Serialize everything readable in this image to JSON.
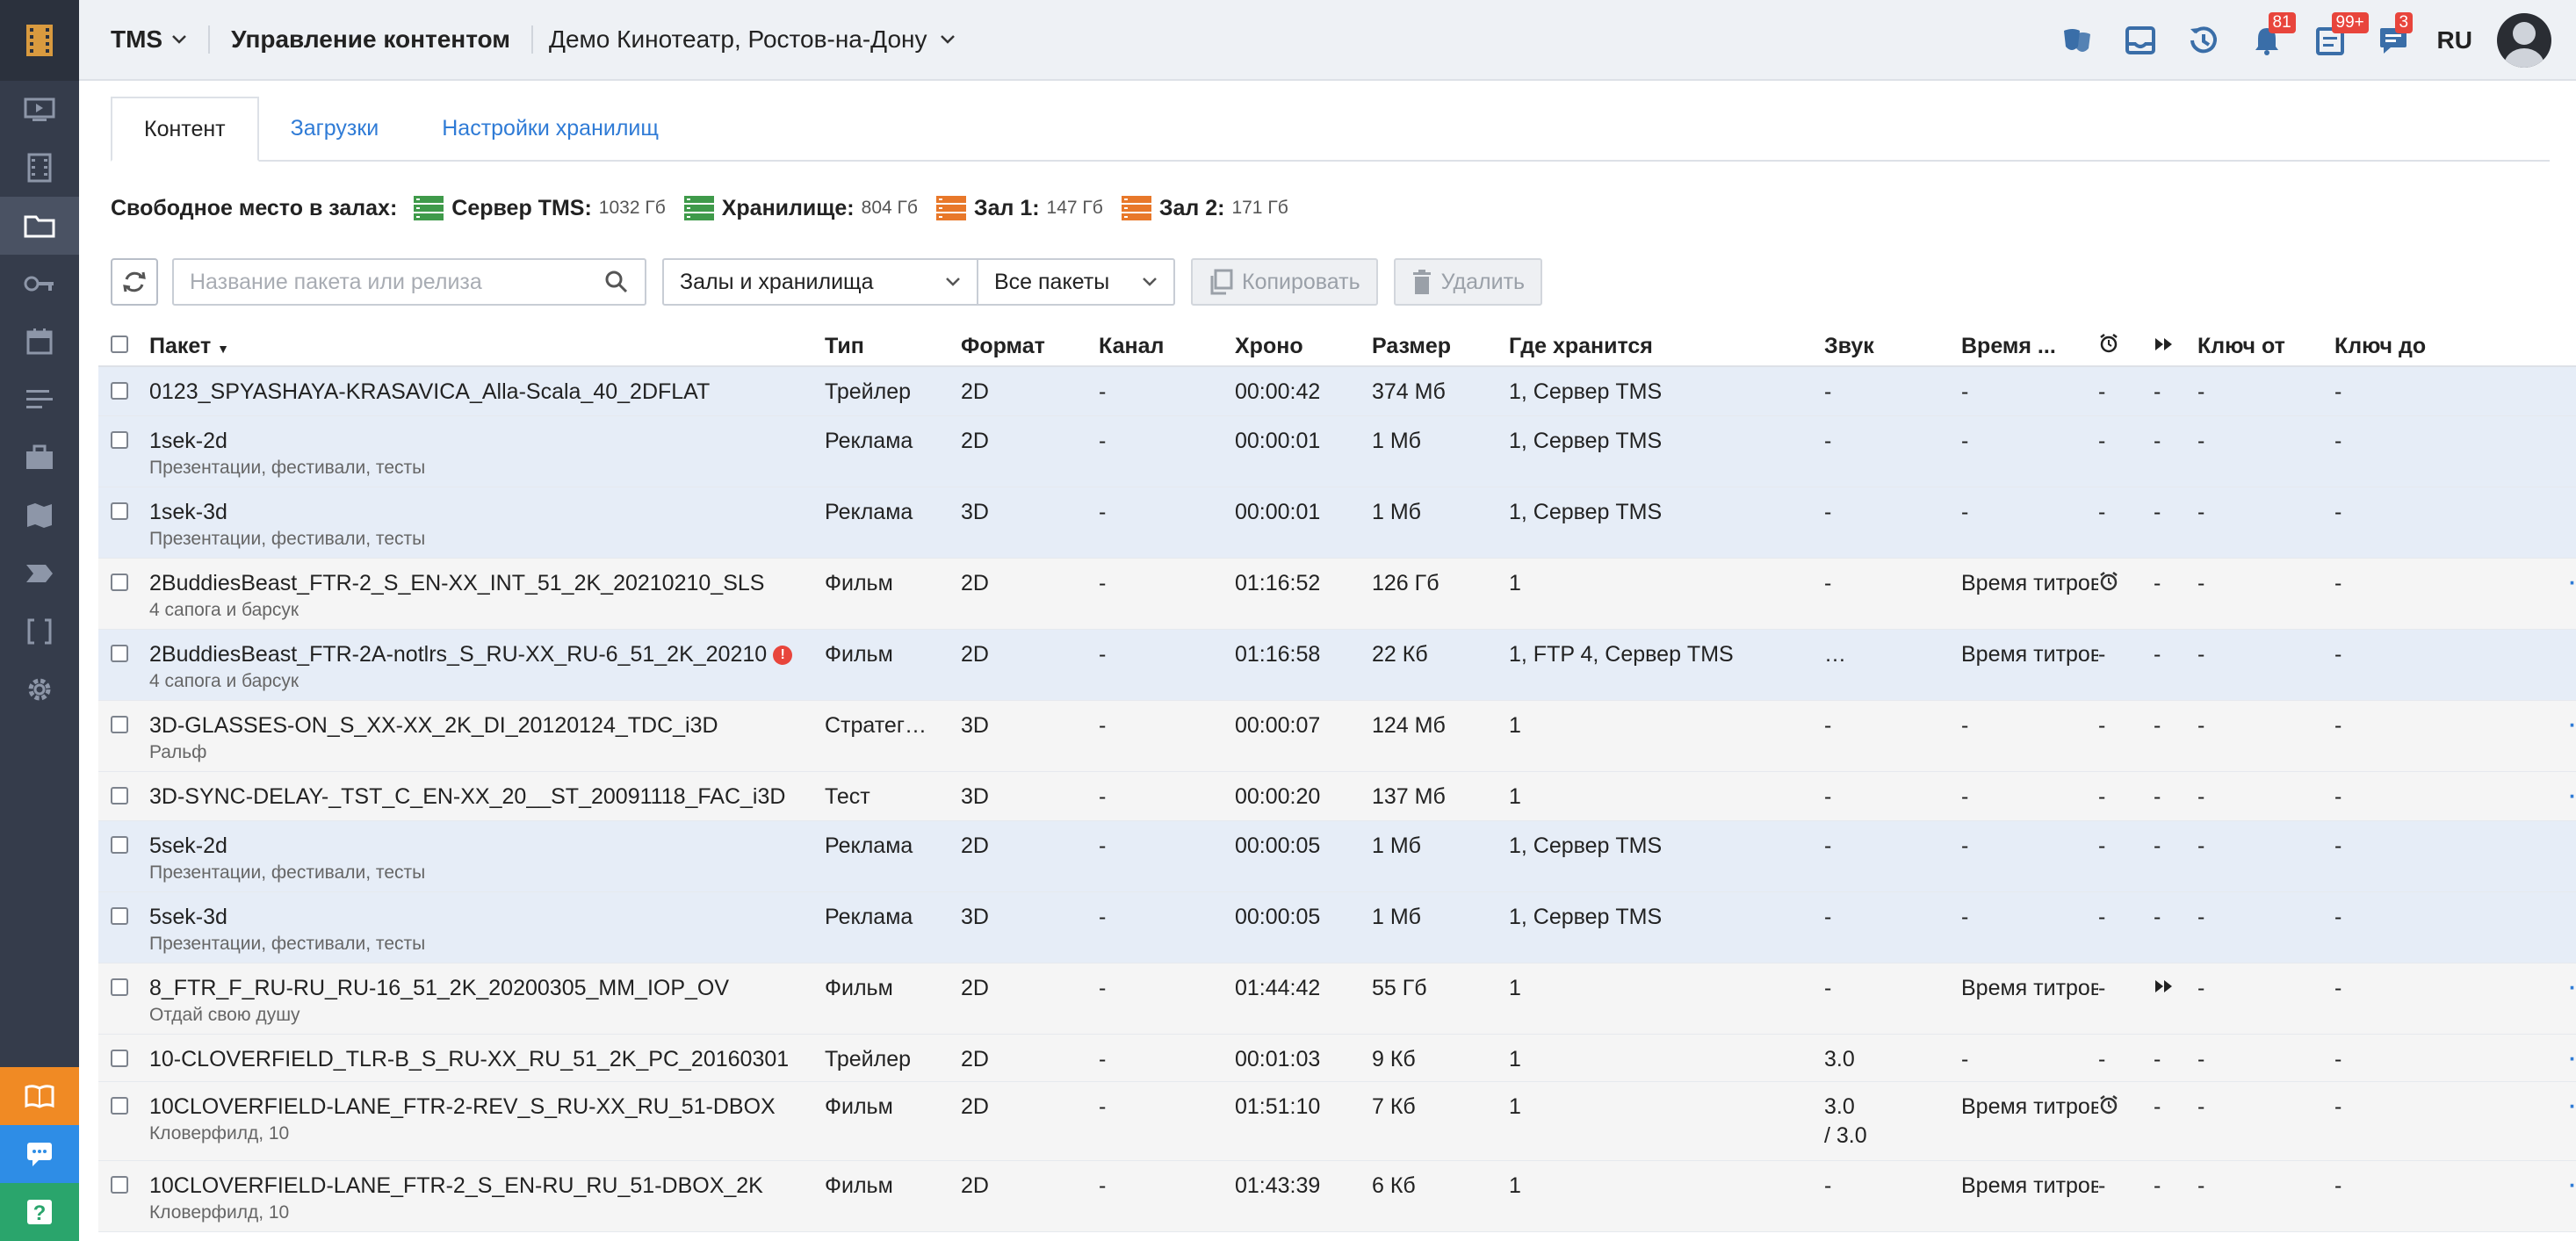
{
  "header": {
    "app": "TMS",
    "title": "Управление контентом",
    "cinema": "Демо Кинотеатр, Ростов-на-Дону",
    "badges": {
      "notifications": "81",
      "tasks": "99+",
      "messages": "3"
    },
    "lang": "RU"
  },
  "tabs": [
    "Контент",
    "Загрузки",
    "Настройки хранилищ"
  ],
  "free_space": {
    "label": "Свободное место в залах:",
    "servers": [
      {
        "name": "Сервер TMS:",
        "size": "1032 Гб",
        "color": "#3f9a4a"
      },
      {
        "name": "Хранилище:",
        "size": "804 Гб",
        "color": "#3f9a4a"
      },
      {
        "name": "Зал 1:",
        "size": "147 Гб",
        "color": "#e8782a"
      },
      {
        "name": "Зал 2:",
        "size": "171 Гб",
        "color": "#e8782a"
      }
    ]
  },
  "toolbar": {
    "search_placeholder": "Название пакета или релиза",
    "filter_halls": "Залы и хранилища",
    "filter_packages": "Все пакеты",
    "copy": "Копировать",
    "delete": "Удалить"
  },
  "columns": [
    "Пакет",
    "Тип",
    "Формат",
    "Канал",
    "Хроно",
    "Размер",
    "Где хранится",
    "Звук",
    "Время ...",
    "Ключ от",
    "Ключ до"
  ],
  "rows": [
    {
      "name": "0123_SPYASHAYA-KRASAVICA_Alla-Scala_40_2DFLAT",
      "sub": "",
      "type": "Трейлер",
      "fmt": "2D",
      "ch": "-",
      "chr": "00:00:42",
      "size": "374 Мб",
      "where": "1, Сервер TMS",
      "snd": "-",
      "time": "-",
      "alarm": "-",
      "ff": "-",
      "kfrom": "-",
      "kto": "-",
      "act": "chevron",
      "bg": "blue",
      "h": 56
    },
    {
      "name": "1sek-2d",
      "sub": "Презентации, фестивали, тесты",
      "type": "Реклама",
      "fmt": "2D",
      "ch": "-",
      "chr": "00:00:01",
      "size": "1 Мб",
      "where": "1, Сервер TMS",
      "snd": "-",
      "time": "-",
      "alarm": "-",
      "ff": "-",
      "kfrom": "-",
      "kto": "-",
      "act": "chevron",
      "bg": "blue",
      "h": 81
    },
    {
      "name": "1sek-3d",
      "sub": "Презентации, фестивали, тесты",
      "type": "Реклама",
      "fmt": "3D",
      "ch": "-",
      "chr": "00:00:01",
      "size": "1 Мб",
      "where": "1, Сервер TMS",
      "snd": "-",
      "time": "-",
      "alarm": "-",
      "ff": "-",
      "kfrom": "-",
      "kto": "-",
      "act": "chevron",
      "bg": "blue",
      "h": 81
    },
    {
      "name": "2BuddiesBeast_FTR-2_S_EN-XX_INT_51_2K_20210210_SLS",
      "sub": "4 сапога и барсук",
      "type": "Фильм",
      "fmt": "2D",
      "ch": "-",
      "chr": "01:16:52",
      "size": "126 Гб",
      "where": "1",
      "snd": "-",
      "time": "Время титров",
      "alarm": "icon",
      "ff": "-",
      "kfrom": "-",
      "kto": "-",
      "act": "dots",
      "bg": "gray",
      "h": 81
    },
    {
      "name": "2BuddiesBeast_FTR-2A-notlrs_S_RU-XX_RU-6_51_2K_20210",
      "sub": "4 сапога и барсук",
      "warn": true,
      "type": "Фильм",
      "fmt": "2D",
      "ch": "-",
      "chr": "01:16:58",
      "size": "22 Кб",
      "where": "1, FTP 4, Сервер TMS",
      "snd": "…",
      "time": "Время титров",
      "alarm": "-",
      "ff": "-",
      "kfrom": "-",
      "kto": "-",
      "act": "chevron",
      "bg": "blue",
      "h": 81
    },
    {
      "name": "3D-GLASSES-ON_S_XX-XX_2K_DI_20120124_TDC_i3D",
      "sub": "Ральф",
      "type": "Стратег…",
      "fmt": "3D",
      "ch": "-",
      "chr": "00:00:07",
      "size": "124 Мб",
      "where": "1",
      "snd": "-",
      "time": "-",
      "alarm": "-",
      "ff": "-",
      "kfrom": "-",
      "kto": "-",
      "act": "dots",
      "bg": "gray",
      "h": 81
    },
    {
      "name": "3D-SYNC-DELAY-_TST_C_EN-XX_20__ST_20091118_FAC_i3D",
      "sub": "",
      "type": "Тест",
      "fmt": "3D",
      "ch": "-",
      "chr": "00:00:20",
      "size": "137 Мб",
      "where": "1",
      "snd": "-",
      "time": "-",
      "alarm": "-",
      "ff": "-",
      "kfrom": "-",
      "kto": "-",
      "act": "dots",
      "bg": "gray",
      "h": 56
    },
    {
      "name": "5sek-2d",
      "sub": "Презентации, фестивали, тесты",
      "type": "Реклама",
      "fmt": "2D",
      "ch": "-",
      "chr": "00:00:05",
      "size": "1 Мб",
      "where": "1, Сервер TMS",
      "snd": "-",
      "time": "-",
      "alarm": "-",
      "ff": "-",
      "kfrom": "-",
      "kto": "-",
      "act": "chevron",
      "bg": "blue",
      "h": 81
    },
    {
      "name": "5sek-3d",
      "sub": "Презентации, фестивали, тесты",
      "type": "Реклама",
      "fmt": "3D",
      "ch": "-",
      "chr": "00:00:05",
      "size": "1 Мб",
      "where": "1, Сервер TMS",
      "snd": "-",
      "time": "-",
      "alarm": "-",
      "ff": "-",
      "kfrom": "-",
      "kto": "-",
      "act": "chevron",
      "bg": "blue",
      "h": 81
    },
    {
      "name": "8_FTR_F_RU-RU_RU-16_51_2K_20200305_MM_IOP_OV",
      "sub": "Отдай свою душу",
      "type": "Фильм",
      "fmt": "2D",
      "ch": "-",
      "chr": "01:44:42",
      "size": "55 Гб",
      "where": "1",
      "snd": "-",
      "time": "Время титров",
      "alarm": "-",
      "ff": "icon",
      "kfrom": "-",
      "kto": "-",
      "act": "dots",
      "bg": "gray",
      "h": 81
    },
    {
      "name": "10-CLOVERFIELD_TLR-B_S_RU-XX_RU_51_2K_PC_20160301",
      "sub": "",
      "type": "Трейлер",
      "fmt": "2D",
      "ch": "-",
      "chr": "00:01:03",
      "size": "9 Кб",
      "where": "1",
      "snd": "3.0",
      "time": "-",
      "alarm": "-",
      "ff": "-",
      "kfrom": "-",
      "kto": "-",
      "act": "dots",
      "bg": "gray",
      "h": 54
    },
    {
      "name": "10CLOVERFIELD-LANE_FTR-2-REV_S_RU-XX_RU_51-DBOX",
      "sub": "Кловерфилд, 10",
      "snd2": "/ 3.0",
      "type": "Фильм",
      "fmt": "2D",
      "ch": "-",
      "chr": "01:51:10",
      "size": "7 Кб",
      "where": "1",
      "snd": "3.0",
      "time": "Время титров",
      "alarm": "icon",
      "ff": "-",
      "kfrom": "-",
      "kto": "-",
      "act": "dots",
      "bg": "gray",
      "h": 90
    },
    {
      "name": "10CLOVERFIELD-LANE_FTR-2_S_EN-RU_RU_51-DBOX_2K",
      "sub": "Кловерфилд, 10",
      "type": "Фильм",
      "fmt": "2D",
      "ch": "-",
      "chr": "01:43:39",
      "size": "6 Кб",
      "where": "1",
      "snd": "-",
      "time": "Время титров",
      "alarm": "-",
      "ff": "-",
      "kfrom": "-",
      "kto": "-",
      "act": "dots",
      "bg": "gray",
      "h": 81
    }
  ]
}
